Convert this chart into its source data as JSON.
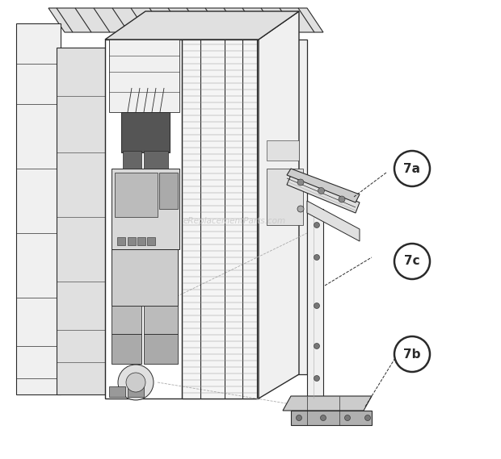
{
  "bg_color": "#ffffff",
  "lc": "#2a2a2a",
  "fill_white": "#ffffff",
  "fill_light": "#f0f0f0",
  "fill_mid": "#e0e0e0",
  "fill_dark": "#cccccc",
  "fill_darker": "#b0b0b0",
  "fill_black": "#333333",
  "label_7a": "7a",
  "label_7b": "7b",
  "label_7c": "7c",
  "watermark": "eReplacementParts.com",
  "watermark_color": "#c8c8c8",
  "label_fontsize": 11,
  "watermark_fontsize": 7.5,
  "circle_lw": 1.8
}
